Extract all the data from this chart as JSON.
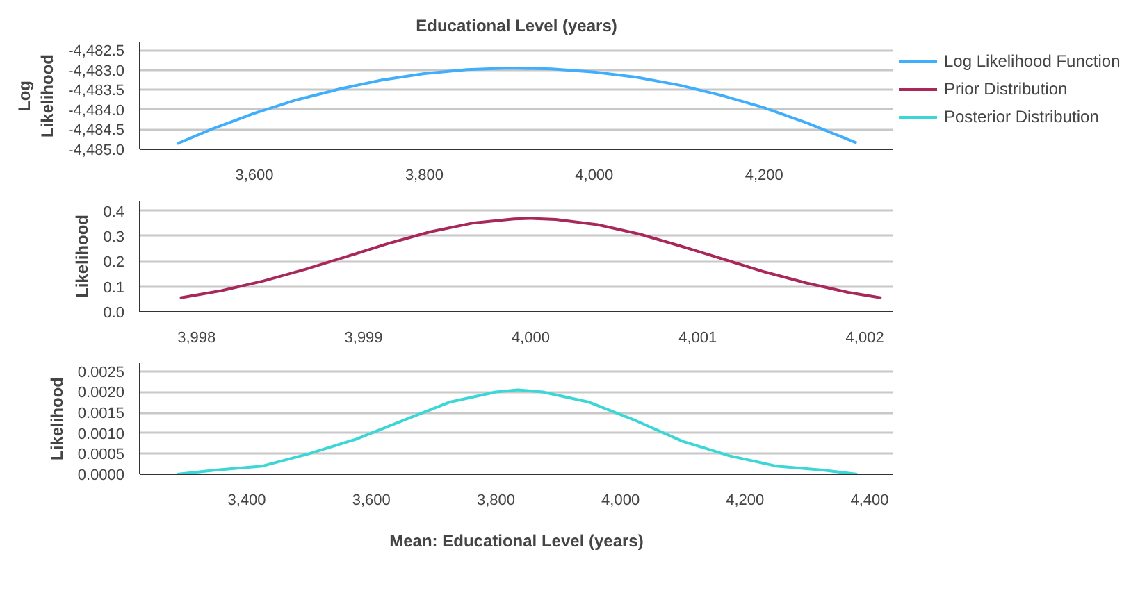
{
  "chart_data": [
    {
      "type": "line",
      "title": "Educational Level (years)",
      "ylabel": "Log Likelihood",
      "grid": "y",
      "legend": "right",
      "xlim": [
        3465,
        4352
      ],
      "ylim": [
        -4485.0,
        -4482.3
      ],
      "xticks": [
        {
          "value": 3600,
          "label": "3,600"
        },
        {
          "value": 3800,
          "label": "3,800"
        },
        {
          "value": 4000,
          "label": "4,000"
        },
        {
          "value": 4200,
          "label": "4,200"
        }
      ],
      "yticks": [
        {
          "value": -4485.0,
          "label": "-4,485.0"
        },
        {
          "value": -4484.5,
          "label": "-4,484.5"
        },
        {
          "value": -4484.0,
          "label": "-4,484.0"
        },
        {
          "value": -4483.5,
          "label": "-4,483.5"
        },
        {
          "value": -4483.0,
          "label": "-4,483.0"
        },
        {
          "value": -4482.5,
          "label": "-4,482.5"
        }
      ],
      "series": [
        {
          "name": "Log Likelihood Function",
          "color": "#41aefc",
          "x": [
            3509,
            3550,
            3600,
            3650,
            3700,
            3750,
            3800,
            3850,
            3900,
            3950,
            4000,
            4050,
            4100,
            4150,
            4200,
            4250,
            4309
          ],
          "values": [
            -4484.86,
            -4484.49,
            -4484.09,
            -4483.75,
            -4483.48,
            -4483.25,
            -4483.09,
            -4482.99,
            -4482.95,
            -4482.97,
            -4483.05,
            -4483.18,
            -4483.38,
            -4483.64,
            -4483.95,
            -4484.33,
            -4484.84
          ]
        }
      ]
    },
    {
      "type": "line",
      "ylabel": "Likelihood",
      "grid": "y",
      "xlim": [
        3997.66,
        4002.17
      ],
      "ylim": [
        0,
        0.44
      ],
      "xticks": [
        {
          "value": 3998,
          "label": "3,998"
        },
        {
          "value": 3999,
          "label": "3,999"
        },
        {
          "value": 4000,
          "label": "4,000"
        },
        {
          "value": 4001,
          "label": "4,001"
        },
        {
          "value": 4002,
          "label": "4,002"
        }
      ],
      "yticks": [
        {
          "value": 0,
          "label": "0.0"
        },
        0.1,
        0.2,
        0.3,
        0.4
      ],
      "series": [
        {
          "name": "Prior Distribution",
          "color": "#a8285a",
          "x": [
            3997.9,
            3998.15,
            3998.4,
            3998.65,
            3998.9,
            3999.15,
            3999.4,
            3999.65,
            3999.9,
            4000.0,
            4000.15,
            4000.4,
            4000.65,
            4000.9,
            4001.15,
            4001.4,
            4001.65,
            4001.9,
            4002.1
          ],
          "values": [
            0.055,
            0.084,
            0.122,
            0.168,
            0.219,
            0.271,
            0.317,
            0.351,
            0.368,
            0.37,
            0.366,
            0.345,
            0.308,
            0.26,
            0.209,
            0.158,
            0.114,
            0.077,
            0.055
          ]
        }
      ]
    },
    {
      "type": "line",
      "ylabel": "Likelihood",
      "xlabel": "Mean: Educational Level (years)",
      "grid": "y",
      "xlim": [
        3228,
        4438
      ],
      "ylim": [
        0,
        0.0027
      ],
      "xticks": [
        {
          "value": 3400,
          "label": "3,400"
        },
        {
          "value": 3600,
          "label": "3,600"
        },
        {
          "value": 3800,
          "label": "3,800"
        },
        {
          "value": 4000,
          "label": "4,000"
        },
        {
          "value": 4200,
          "label": "4,200"
        },
        {
          "value": 4400,
          "label": "4,400"
        }
      ],
      "yticks": [
        {
          "value": 0,
          "label": "0.0000"
        },
        {
          "value": 0.0005,
          "label": "0.0005"
        },
        {
          "value": 0.001,
          "label": "0.0010"
        },
        {
          "value": 0.0015,
          "label": "0.0015"
        },
        {
          "value": 0.002,
          "label": "0.0020"
        },
        {
          "value": 0.0025,
          "label": "0.0025"
        }
      ],
      "series": [
        {
          "name": "Posterior Distribution",
          "color": "#3cd6d6",
          "x": [
            3288,
            3350,
            3425,
            3500,
            3575,
            3650,
            3725,
            3800,
            3835,
            3875,
            3950,
            4025,
            4100,
            4175,
            4250,
            4325,
            4380
          ],
          "values": [
            0.0,
            0.0001,
            0.0002,
            0.0005,
            0.00085,
            0.0013,
            0.00175,
            0.002,
            0.00205,
            0.002,
            0.00175,
            0.0013,
            0.0008,
            0.00045,
            0.0002,
            0.0001,
            0.0
          ]
        }
      ]
    }
  ]
}
